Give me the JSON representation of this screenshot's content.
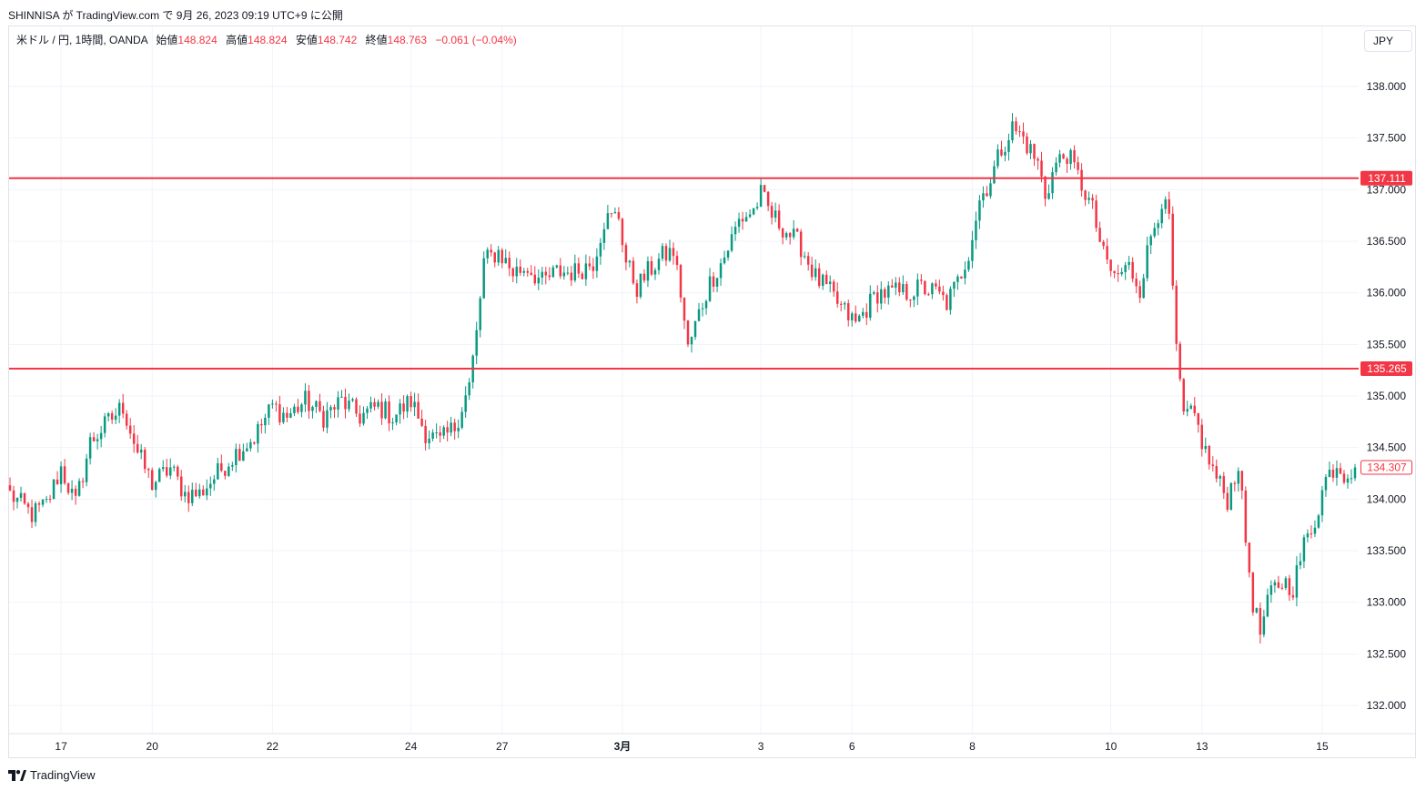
{
  "header": {
    "published": "SHINNISA が TradingView.com で 9月 26, 2023 09:19 UTC+9 に公開"
  },
  "legend": {
    "symbol": "米ドル / 円, 1時間, OANDA",
    "open_label": "始値",
    "open": "148.824",
    "high_label": "高値",
    "high": "148.824",
    "low_label": "安値",
    "low": "148.742",
    "close_label": "終値",
    "close": "148.763",
    "change": "−0.061 (−0.04%)"
  },
  "currency_button": "JPY",
  "footer": {
    "brand": "TradingView"
  },
  "colors": {
    "up": "#089981",
    "down": "#f23645",
    "grid": "#f0f3fa",
    "level_line": "#f23645",
    "axis_text": "#131722"
  },
  "chart_data": {
    "type": "candlestick",
    "title": "",
    "ylim": [
      131.7,
      138.6
    ],
    "y_ticks": [
      132.0,
      132.5,
      133.0,
      133.5,
      134.0,
      134.5,
      135.0,
      135.5,
      136.0,
      136.5,
      137.0,
      137.5,
      138.0
    ],
    "y_tick_labels": [
      "132.000",
      "132.500",
      "133.000",
      "133.500",
      "134.000",
      "134.500",
      "135.000",
      "135.500",
      "136.000",
      "136.500",
      "137.000",
      "137.500",
      "138.000"
    ],
    "x_ticks": [
      {
        "label": "17",
        "bar": 14
      },
      {
        "label": "20",
        "bar": 39
      },
      {
        "label": "22",
        "bar": 72
      },
      {
        "label": "24",
        "bar": 110
      },
      {
        "label": "27",
        "bar": 135
      },
      {
        "label": "3月",
        "bar": 168,
        "bold": true
      },
      {
        "label": "3",
        "bar": 206
      },
      {
        "label": "6",
        "bar": 231
      },
      {
        "label": "8",
        "bar": 264
      },
      {
        "label": "10",
        "bar": 302
      },
      {
        "label": "13",
        "bar": 327
      },
      {
        "label": "15",
        "bar": 360
      }
    ],
    "horizontal_levels": [
      {
        "value": 137.111,
        "label": "137.111"
      },
      {
        "value": 135.265,
        "label": "135.265"
      }
    ],
    "last_price": {
      "value": 134.307,
      "label": "134.307"
    },
    "bar_count": 370,
    "anchors": [
      [
        0,
        134.05
      ],
      [
        6,
        133.85
      ],
      [
        10,
        133.95
      ],
      [
        14,
        134.3
      ],
      [
        18,
        133.95
      ],
      [
        22,
        134.55
      ],
      [
        27,
        134.75
      ],
      [
        31,
        134.9
      ],
      [
        35,
        134.45
      ],
      [
        39,
        134.15
      ],
      [
        44,
        134.3
      ],
      [
        48,
        134.05
      ],
      [
        52,
        134.05
      ],
      [
        57,
        134.25
      ],
      [
        62,
        134.45
      ],
      [
        67,
        134.6
      ],
      [
        72,
        134.9
      ],
      [
        76,
        134.8
      ],
      [
        81,
        134.95
      ],
      [
        86,
        134.8
      ],
      [
        91,
        134.95
      ],
      [
        96,
        134.8
      ],
      [
        101,
        134.9
      ],
      [
        105,
        134.8
      ],
      [
        110,
        134.95
      ],
      [
        114,
        134.65
      ],
      [
        118,
        134.55
      ],
      [
        122,
        134.7
      ],
      [
        126,
        135.1
      ],
      [
        128,
        135.6
      ],
      [
        130,
        136.3
      ],
      [
        134,
        136.4
      ],
      [
        138,
        136.2
      ],
      [
        142,
        136.25
      ],
      [
        146,
        136.1
      ],
      [
        150,
        136.2
      ],
      [
        155,
        136.2
      ],
      [
        160,
        136.3
      ],
      [
        163,
        136.7
      ],
      [
        167,
        136.75
      ],
      [
        169,
        136.3
      ],
      [
        172,
        136.05
      ],
      [
        175,
        136.2
      ],
      [
        179,
        136.35
      ],
      [
        182,
        136.4
      ],
      [
        184,
        136.0
      ],
      [
        186,
        135.45
      ],
      [
        189,
        135.8
      ],
      [
        192,
        136.1
      ],
      [
        196,
        136.35
      ],
      [
        200,
        136.7
      ],
      [
        204,
        136.8
      ],
      [
        206,
        136.95
      ],
      [
        209,
        136.75
      ],
      [
        213,
        136.6
      ],
      [
        217,
        136.45
      ],
      [
        221,
        136.15
      ],
      [
        225,
        136.0
      ],
      [
        228,
        135.85
      ],
      [
        232,
        135.7
      ],
      [
        235,
        135.85
      ],
      [
        238,
        136.0
      ],
      [
        242,
        136.0
      ],
      [
        246,
        136.0
      ],
      [
        250,
        136.05
      ],
      [
        254,
        136.0
      ],
      [
        257,
        135.9
      ],
      [
        260,
        136.1
      ],
      [
        263,
        136.4
      ],
      [
        266,
        136.9
      ],
      [
        269,
        137.1
      ],
      [
        272,
        137.4
      ],
      [
        275,
        137.6
      ],
      [
        278,
        137.5
      ],
      [
        282,
        137.25
      ],
      [
        284,
        136.95
      ],
      [
        287,
        137.25
      ],
      [
        290,
        137.35
      ],
      [
        294,
        137.05
      ],
      [
        297,
        136.8
      ],
      [
        300,
        136.35
      ],
      [
        303,
        136.15
      ],
      [
        307,
        136.25
      ],
      [
        310,
        136.05
      ],
      [
        313,
        136.55
      ],
      [
        316,
        136.9
      ],
      [
        318,
        136.7
      ],
      [
        320,
        135.4
      ],
      [
        322,
        134.8
      ],
      [
        325,
        134.8
      ],
      [
        328,
        134.45
      ],
      [
        331,
        134.2
      ],
      [
        334,
        134.0
      ],
      [
        337,
        134.35
      ],
      [
        339,
        133.6
      ],
      [
        341,
        133.0
      ],
      [
        343,
        132.7
      ],
      [
        346,
        133.1
      ],
      [
        349,
        133.2
      ],
      [
        352,
        133.15
      ],
      [
        355,
        133.55
      ],
      [
        358,
        133.8
      ],
      [
        361,
        134.2
      ],
      [
        364,
        134.35
      ],
      [
        366,
        134.25
      ],
      [
        369,
        134.31
      ]
    ]
  }
}
